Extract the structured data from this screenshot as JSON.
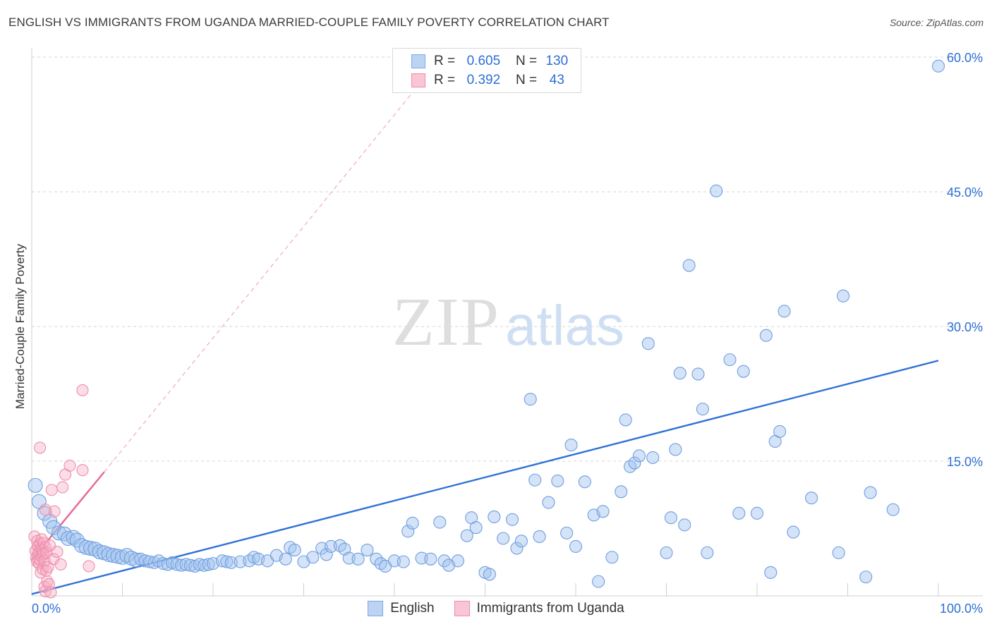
{
  "header": {
    "title": "ENGLISH VS IMMIGRANTS FROM UGANDA MARRIED-COUPLE FAMILY POVERTY CORRELATION CHART",
    "source": "Source: ZipAtlas.com"
  },
  "legend": {
    "rows": [
      {
        "r_label": "R =",
        "r_value": "0.605",
        "n_label": "N =",
        "n_value": "130",
        "color": "#7aaae8"
      },
      {
        "r_label": "R =",
        "r_value": "0.392",
        "n_label": "N =",
        "n_value": "43",
        "color": "#f08aaa"
      }
    ]
  },
  "bottom_legend": [
    {
      "label": "English",
      "color": "#7aaae8"
    },
    {
      "label": "Immigrants from Uganda",
      "color": "#f08aaa"
    }
  ],
  "watermark": {
    "zip": "ZIP",
    "atlas": "atlas"
  },
  "chart_data": {
    "type": "scatter",
    "title": "ENGLISH VS IMMIGRANTS FROM UGANDA MARRIED-COUPLE FAMILY POVERTY CORRELATION CHART",
    "xlabel": "",
    "ylabel": "Married-Couple Family Poverty",
    "xlim": [
      0,
      100
    ],
    "ylim": [
      0,
      60
    ],
    "x_tick_labels": [
      {
        "value": 0,
        "label": "0.0%"
      },
      {
        "value": 100,
        "label": "100.0%"
      }
    ],
    "y_tick_labels": [
      {
        "value": 15,
        "label": "15.0%"
      },
      {
        "value": 30,
        "label": "30.0%"
      },
      {
        "value": 45,
        "label": "45.0%"
      },
      {
        "value": 60,
        "label": "60.0%"
      }
    ],
    "grid": true,
    "series": [
      {
        "name": "English",
        "color": "#7aaae8",
        "r": 0.605,
        "n": 130,
        "trend": {
          "x": [
            0,
            100
          ],
          "y": [
            0.2,
            26.2
          ],
          "style": "solid"
        },
        "points": [
          [
            0.4,
            12.3
          ],
          [
            0.8,
            10.5
          ],
          [
            1.4,
            9.2
          ],
          [
            2,
            8.3
          ],
          [
            2.4,
            7.6
          ],
          [
            3,
            7.0
          ],
          [
            3.6,
            6.9
          ],
          [
            4,
            6.4
          ],
          [
            4.6,
            6.5
          ],
          [
            5,
            6.2
          ],
          [
            5.5,
            5.6
          ],
          [
            6,
            5.4
          ],
          [
            6.5,
            5.3
          ],
          [
            7,
            5.2
          ],
          [
            7.5,
            4.9
          ],
          [
            8,
            4.8
          ],
          [
            8.5,
            4.6
          ],
          [
            9,
            4.5
          ],
          [
            9.5,
            4.4
          ],
          [
            10,
            4.3
          ],
          [
            10.5,
            4.5
          ],
          [
            11,
            4.2
          ],
          [
            11.5,
            4.0
          ],
          [
            12,
            4.1
          ],
          [
            12.5,
            3.9
          ],
          [
            13,
            3.8
          ],
          [
            13.5,
            3.7
          ],
          [
            14,
            3.9
          ],
          [
            14.5,
            3.6
          ],
          [
            15,
            3.5
          ],
          [
            15.5,
            3.7
          ],
          [
            16,
            3.5
          ],
          [
            16.5,
            3.4
          ],
          [
            17,
            3.5
          ],
          [
            17.5,
            3.4
          ],
          [
            18,
            3.3
          ],
          [
            18.5,
            3.5
          ],
          [
            19,
            3.4
          ],
          [
            19.5,
            3.5
          ],
          [
            20,
            3.6
          ],
          [
            21,
            3.9
          ],
          [
            21.5,
            3.8
          ],
          [
            22,
            3.7
          ],
          [
            23,
            3.8
          ],
          [
            24,
            3.9
          ],
          [
            24.5,
            4.3
          ],
          [
            25,
            4.1
          ],
          [
            26,
            3.9
          ],
          [
            27,
            4.5
          ],
          [
            28,
            4.1
          ],
          [
            28.5,
            5.4
          ],
          [
            29,
            5.1
          ],
          [
            30,
            3.8
          ],
          [
            31,
            4.3
          ],
          [
            32,
            5.3
          ],
          [
            32.5,
            4.6
          ],
          [
            33,
            5.5
          ],
          [
            34,
            5.6
          ],
          [
            34.5,
            5.2
          ],
          [
            35,
            4.2
          ],
          [
            36,
            4.1
          ],
          [
            37,
            5.1
          ],
          [
            38,
            4.1
          ],
          [
            38.5,
            3.6
          ],
          [
            39,
            3.3
          ],
          [
            40,
            3.9
          ],
          [
            41,
            3.8
          ],
          [
            41.5,
            7.2
          ],
          [
            42,
            8.1
          ],
          [
            43,
            4.2
          ],
          [
            44,
            4.1
          ],
          [
            45,
            8.2
          ],
          [
            45.5,
            3.9
          ],
          [
            46,
            3.4
          ],
          [
            47,
            3.9
          ],
          [
            48,
            6.7
          ],
          [
            48.5,
            8.7
          ],
          [
            49,
            7.6
          ],
          [
            50,
            2.6
          ],
          [
            50.5,
            2.4
          ],
          [
            51,
            8.8
          ],
          [
            52,
            6.4
          ],
          [
            53,
            8.5
          ],
          [
            53.5,
            5.3
          ],
          [
            54,
            6.1
          ],
          [
            55,
            21.9
          ],
          [
            55.5,
            12.9
          ],
          [
            56,
            6.6
          ],
          [
            57,
            10.4
          ],
          [
            58,
            12.8
          ],
          [
            59,
            7.0
          ],
          [
            59.5,
            16.8
          ],
          [
            60,
            5.5
          ],
          [
            61,
            12.7
          ],
          [
            62,
            9.0
          ],
          [
            62.5,
            1.6
          ],
          [
            63,
            9.4
          ],
          [
            64,
            4.3
          ],
          [
            65,
            11.6
          ],
          [
            65.5,
            19.6
          ],
          [
            66,
            14.4
          ],
          [
            66.5,
            14.8
          ],
          [
            67,
            15.6
          ],
          [
            68,
            28.1
          ],
          [
            68.5,
            15.4
          ],
          [
            70,
            4.8
          ],
          [
            70.5,
            8.7
          ],
          [
            71,
            16.3
          ],
          [
            71.5,
            24.8
          ],
          [
            72,
            7.9
          ],
          [
            72.5,
            36.8
          ],
          [
            73.5,
            24.7
          ],
          [
            74,
            20.8
          ],
          [
            74.5,
            4.8
          ],
          [
            77,
            26.3
          ],
          [
            78,
            9.2
          ],
          [
            78.5,
            25.0
          ],
          [
            80,
            9.2
          ],
          [
            81,
            29.0
          ],
          [
            81.5,
            2.6
          ],
          [
            82,
            17.2
          ],
          [
            82.5,
            18.3
          ],
          [
            83,
            31.7
          ],
          [
            84,
            7.1
          ],
          [
            86,
            10.9
          ],
          [
            89,
            4.8
          ],
          [
            89.5,
            33.4
          ],
          [
            92,
            2.1
          ],
          [
            92.5,
            11.5
          ],
          [
            95,
            9.6
          ],
          [
            75.5,
            45.1
          ],
          [
            100,
            59.0
          ]
        ]
      },
      {
        "name": "Immigrants from Uganda",
        "color": "#f08aaa",
        "r": 0.392,
        "n": 43,
        "trend": {
          "x": [
            0,
            8
          ],
          "y": [
            4.0,
            13.8
          ],
          "style": "solid",
          "extended": {
            "x": [
              8,
              43
            ],
            "y": [
              13.8,
              57.3
            ],
            "style": "dashed"
          }
        },
        "points": [
          [
            0.3,
            6.6
          ],
          [
            0.4,
            5.0
          ],
          [
            0.5,
            4.2
          ],
          [
            0.6,
            6.1
          ],
          [
            0.6,
            3.8
          ],
          [
            0.7,
            5.5
          ],
          [
            0.7,
            4.6
          ],
          [
            0.8,
            4.9
          ],
          [
            0.8,
            3.6
          ],
          [
            0.9,
            5.8
          ],
          [
            0.9,
            4.0
          ],
          [
            1.0,
            5.3
          ],
          [
            1.0,
            2.6
          ],
          [
            1.1,
            4.4
          ],
          [
            1.1,
            6.3
          ],
          [
            1.2,
            5.1
          ],
          [
            1.2,
            3.0
          ],
          [
            1.3,
            4.7
          ],
          [
            1.3,
            5.9
          ],
          [
            1.4,
            3.9
          ],
          [
            1.4,
            1.0
          ],
          [
            1.5,
            5.4
          ],
          [
            1.5,
            0.5
          ],
          [
            1.6,
            4.8
          ],
          [
            1.6,
            2.8
          ],
          [
            1.7,
            1.6
          ],
          [
            1.8,
            3.2
          ],
          [
            1.9,
            1.3
          ],
          [
            2.0,
            5.6
          ],
          [
            2.1,
            0.4
          ],
          [
            2.2,
            11.8
          ],
          [
            2.4,
            4.1
          ],
          [
            2.5,
            9.4
          ],
          [
            0.9,
            16.5
          ],
          [
            1.5,
            9.6
          ],
          [
            2.8,
            4.9
          ],
          [
            3.2,
            3.5
          ],
          [
            3.4,
            12.1
          ],
          [
            3.7,
            13.5
          ],
          [
            4.2,
            14.5
          ],
          [
            5.6,
            14.0
          ],
          [
            6.3,
            3.3
          ],
          [
            5.6,
            22.9
          ]
        ]
      }
    ]
  }
}
